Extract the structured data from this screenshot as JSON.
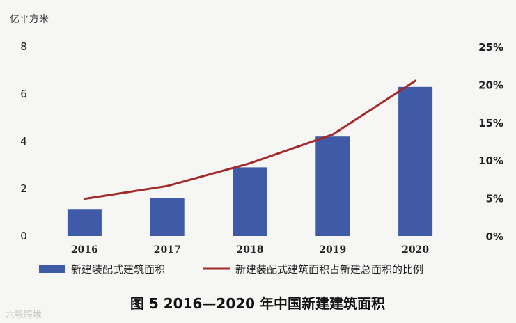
{
  "chart_data": {
    "type": "bar+line",
    "caption": "图 5  2016—2020 年中国新建建筑面积",
    "y_left_unit": "亿平方米",
    "y_left_range": [
      0,
      8
    ],
    "y_left_ticks": [
      "0",
      "2",
      "4",
      "6",
      "8"
    ],
    "y_right_range": [
      0,
      25
    ],
    "y_right_ticks": [
      "0%",
      "5%",
      "10%",
      "15%",
      "20%",
      "25%"
    ],
    "categories": [
      "2016",
      "2017",
      "2018",
      "2019",
      "2020"
    ],
    "series": [
      {
        "name": "新建装配式建筑面积",
        "kind": "bar",
        "axis": "left",
        "values": [
          1.14,
          1.6,
          2.9,
          4.2,
          6.3
        ],
        "color": "#3f5aa6"
      },
      {
        "name": "新建装配式建筑面积占新建总面积的比例",
        "kind": "line",
        "axis": "right",
        "values": [
          4.9,
          6.6,
          9.6,
          13.4,
          20.5
        ],
        "color": "#a32a2a"
      }
    ],
    "grid": false,
    "legend_position": "bottom"
  },
  "watermark": "六毂跨境"
}
